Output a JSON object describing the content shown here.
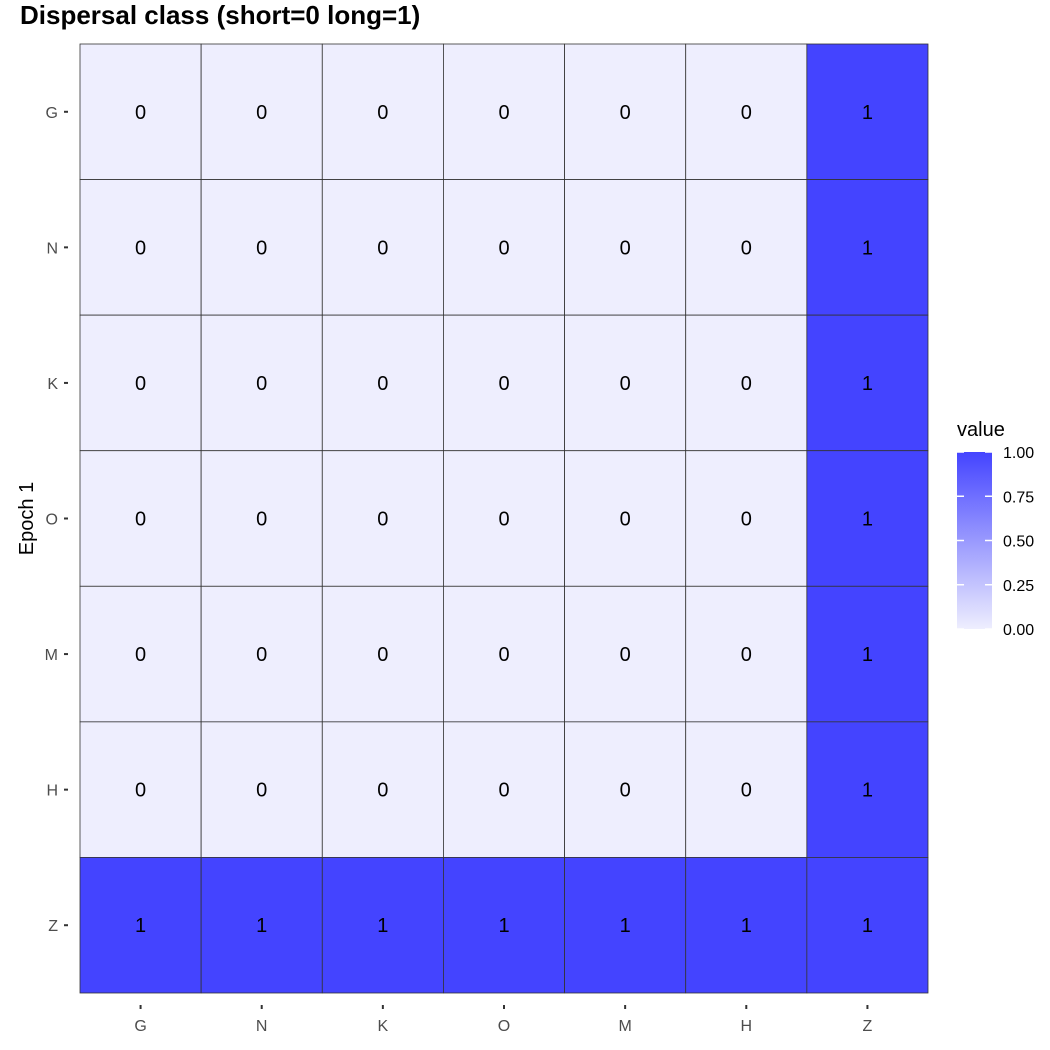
{
  "title": "Dispersal class (short=0 long=1)",
  "chart_data": {
    "type": "heatmap",
    "title": "Dispersal class (short=0 long=1)",
    "xlabel": "",
    "ylabel": "Epoch 1",
    "x_categories": [
      "G",
      "N",
      "K",
      "O",
      "M",
      "H",
      "Z"
    ],
    "y_categories": [
      "G",
      "N",
      "K",
      "O",
      "M",
      "H",
      "Z"
    ],
    "values": [
      [
        0,
        0,
        0,
        0,
        0,
        0,
        1
      ],
      [
        0,
        0,
        0,
        0,
        0,
        0,
        1
      ],
      [
        0,
        0,
        0,
        0,
        0,
        0,
        1
      ],
      [
        0,
        0,
        0,
        0,
        0,
        0,
        1
      ],
      [
        0,
        0,
        0,
        0,
        0,
        0,
        1
      ],
      [
        0,
        0,
        0,
        0,
        0,
        0,
        1
      ],
      [
        1,
        1,
        1,
        1,
        1,
        1,
        1
      ]
    ],
    "color_low": "#eeeefe",
    "color_high": "#4444ff",
    "legend": {
      "title": "value",
      "ticks": [
        "0.00",
        "0.25",
        "0.50",
        "0.75",
        "1.00"
      ],
      "range": [
        0,
        1
      ],
      "position": "right"
    },
    "grid": false
  }
}
